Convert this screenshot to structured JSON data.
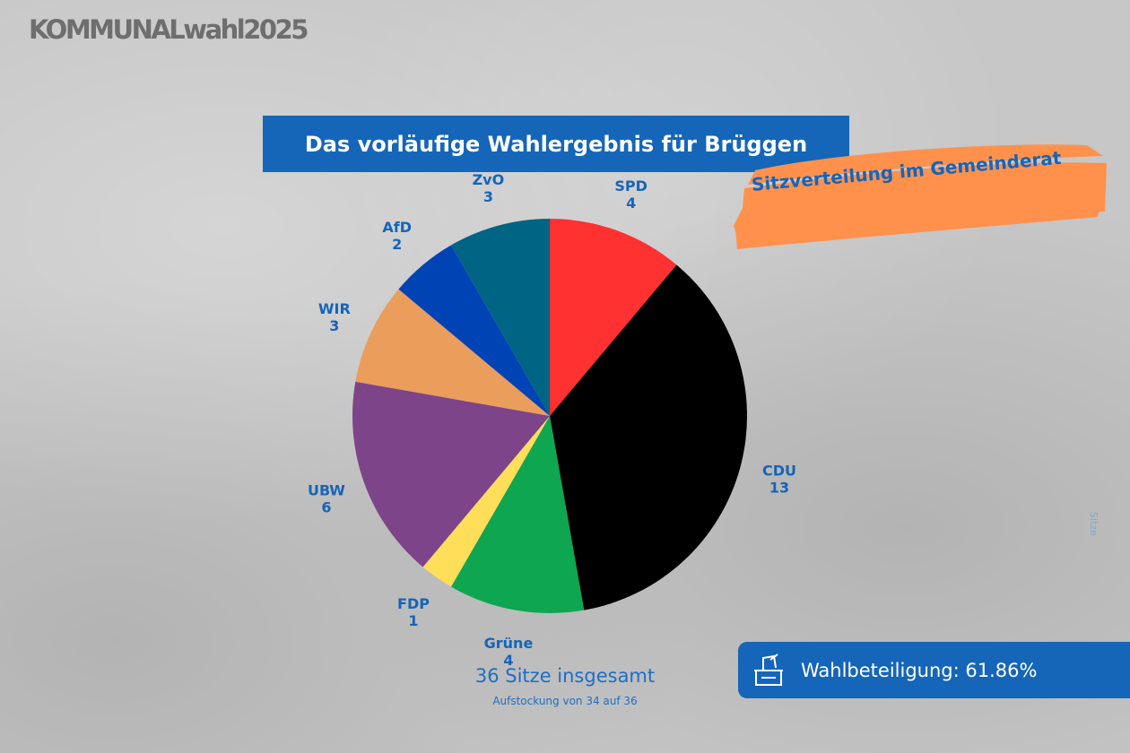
{
  "brand": "KOMMUNALwahl2025",
  "header": {
    "title": "Das vorläufige Wahlergebnis für Brüggen"
  },
  "subtitle": "Sitzverteilung im Gemeinderat",
  "side_label": "Sitze",
  "total": {
    "label": "36 Sitze insgesamt",
    "note": "Aufstockung von 34 auf 36"
  },
  "turnout": {
    "label": "Wahlbeteiligung: 61.86%",
    "icon": "ballot-box-icon"
  },
  "colors": {
    "accent": "#1566b8",
    "highlight": "#ff914d"
  },
  "chart_data": {
    "type": "pie",
    "title": "Das vorläufige Wahlergebnis für Brüggen",
    "unit": "Sitze",
    "total": 36,
    "slices": [
      {
        "label": "SPD",
        "value": 4,
        "color": "#ff3131"
      },
      {
        "label": "CDU",
        "value": 13,
        "color": "#000000"
      },
      {
        "label": "Grüne",
        "value": 4,
        "color": "#0ea651"
      },
      {
        "label": "FDP",
        "value": 1,
        "color": "#ffde59"
      },
      {
        "label": "UBW",
        "value": 6,
        "color": "#7e4489"
      },
      {
        "label": "WIR",
        "value": 3,
        "color": "#eb9d5c"
      },
      {
        "label": "AfD",
        "value": 2,
        "color": "#0043b5"
      },
      {
        "label": "ZvO",
        "value": 3,
        "color": "#006484"
      }
    ]
  }
}
